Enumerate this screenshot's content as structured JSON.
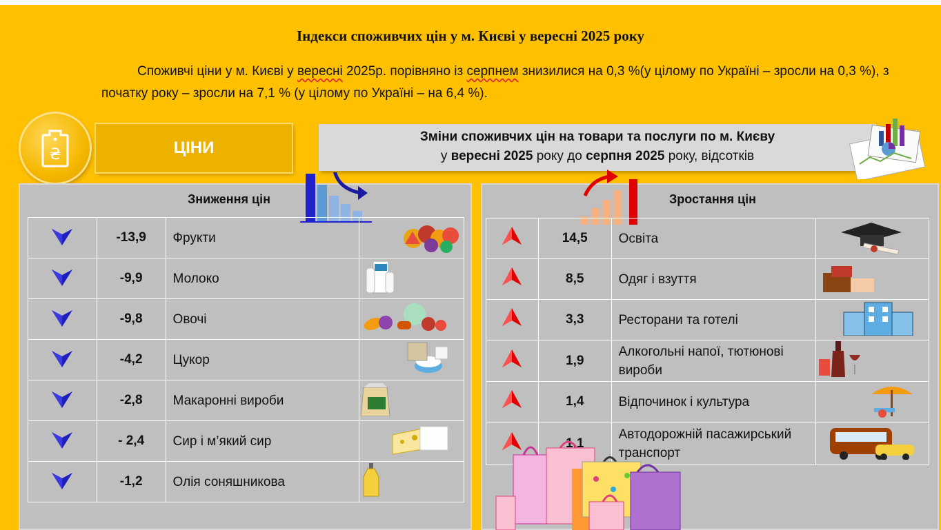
{
  "title": "Індекси споживчих цін у м. Києві у вересні 2025 року",
  "intro": {
    "part1": "Споживчі ціни у м. Києві у ",
    "word1": "вересні",
    "part2": " 2025р. порівняно із ",
    "word2": "серпнем",
    "part3": " знизилися на 0,3 %(у цілому по Україні – зросли на 0,3 %), з початку року – зросли на 7,1 % (у цілому по Україні – на 6,4 %)."
  },
  "price_label": "ЦІНИ",
  "header": {
    "line1": "Зміни споживчих цін на товари та послуги по м. Києву",
    "line2_pre": "у ",
    "line2_b1": "вересні 2025",
    "line2_mid": " року до ",
    "line2_b2": "серпня 2025",
    "line2_post": " року, відсотків"
  },
  "decrease": {
    "title": "Зниження цін",
    "rows": [
      {
        "value": "-13,9",
        "name": "Фрукти",
        "icon": "fruits-icon"
      },
      {
        "value": "-9,9",
        "name": "Молоко",
        "icon": "milk-icon"
      },
      {
        "value": "-9,8",
        "name": "Овочі",
        "icon": "vegetables-icon"
      },
      {
        "value": "-4,2",
        "name": "Цукор",
        "icon": "sugar-icon"
      },
      {
        "value": "-2,8",
        "name": "Макаронні вироби",
        "icon": "pasta-icon"
      },
      {
        "value": "- 2,4",
        "name": "Сир і м’який сир",
        "icon": "cheese-icon"
      },
      {
        "value": "-1,2",
        "name": "Олія соняшникова",
        "icon": "oil-icon"
      }
    ]
  },
  "increase": {
    "title": "Зростання цін",
    "rows": [
      {
        "value": "14,5",
        "name": "Освіта",
        "icon": "graduation-cap-icon"
      },
      {
        "value": "8,5",
        "name": "Одяг і взуття",
        "icon": "clothes-icon"
      },
      {
        "value": "3,3",
        "name": " Ресторани та готелі",
        "icon": "hotel-icon"
      },
      {
        "value": "1,9",
        "name": "Алкогольні напої, тютюнові вироби",
        "icon": "wine-icon"
      },
      {
        "value": "1,4",
        "name": "Відпочинок і культура",
        "icon": "beach-umbrella-icon"
      },
      {
        "value": "1,1",
        "name": "Автодорожній пасажирський транспорт",
        "icon": "bus-icon"
      }
    ]
  },
  "colors": {
    "background": "#FFC000",
    "down": "#1F1FBF",
    "up": "#E00000",
    "panel": "#BFBFBF"
  }
}
